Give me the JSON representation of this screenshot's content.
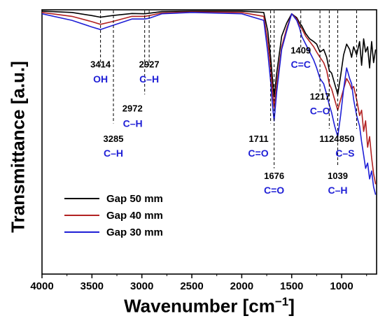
{
  "chart_data": {
    "type": "line",
    "title": "",
    "xlabel": "Wavenumber [cm−1]",
    "xlabel_base": "Wavenumber [cm",
    "xlabel_sup": "−1",
    "xlabel_end": "]",
    "ylabel": "Transmittance [a.u.]",
    "x_reversed": true,
    "xlim": [
      4000,
      650
    ],
    "ylim": [
      0,
      1
    ],
    "xticks": [
      4000,
      3500,
      3000,
      2500,
      2000,
      1500,
      1000
    ],
    "yticks_shown": false,
    "grid": false,
    "legend_position": "lower-left",
    "series": [
      {
        "name": "Gap 50 mm",
        "color": "#000000",
        "x": [
          4000,
          3700,
          3500,
          3414,
          3300,
          3100,
          2972,
          2927,
          2800,
          2500,
          2000,
          1780,
          1740,
          1711,
          1690,
          1676,
          1650,
          1600,
          1550,
          1500,
          1450,
          1420,
          1400,
          1360,
          1320,
          1280,
          1250,
          1217,
          1180,
          1150,
          1124,
          1100,
          1070,
          1039,
          1010,
          980,
          950,
          920,
          900,
          880,
          850,
          820,
          800,
          780,
          760,
          740,
          720,
          700,
          680,
          660
        ],
        "y": [
          0.995,
          0.99,
          0.978,
          0.972,
          0.978,
          0.986,
          0.985,
          0.987,
          0.993,
          0.995,
          0.995,
          0.99,
          0.92,
          0.82,
          0.73,
          0.67,
          0.76,
          0.9,
          0.95,
          0.985,
          0.97,
          0.95,
          0.94,
          0.91,
          0.89,
          0.88,
          0.87,
          0.84,
          0.85,
          0.82,
          0.77,
          0.76,
          0.72,
          0.68,
          0.75,
          0.83,
          0.87,
          0.85,
          0.82,
          0.86,
          0.83,
          0.88,
          0.79,
          0.89,
          0.84,
          0.86,
          0.78,
          0.88,
          0.8,
          0.85
        ]
      },
      {
        "name": "Gap 40 mm",
        "color": "#b22222",
        "x": [
          4000,
          3700,
          3500,
          3414,
          3300,
          3100,
          2972,
          2927,
          2800,
          2500,
          2000,
          1780,
          1740,
          1711,
          1690,
          1676,
          1650,
          1600,
          1550,
          1500,
          1450,
          1420,
          1400,
          1360,
          1320,
          1280,
          1250,
          1217,
          1180,
          1150,
          1124,
          1100,
          1070,
          1039,
          1010,
          980,
          950,
          920,
          900,
          880,
          850,
          820,
          800,
          780,
          760,
          740,
          720,
          700,
          680,
          660
        ],
        "y": [
          0.99,
          0.975,
          0.955,
          0.945,
          0.955,
          0.975,
          0.975,
          0.978,
          0.988,
          0.992,
          0.99,
          0.975,
          0.88,
          0.78,
          0.68,
          0.63,
          0.72,
          0.86,
          0.93,
          0.985,
          0.965,
          0.94,
          0.93,
          0.9,
          0.88,
          0.86,
          0.84,
          0.82,
          0.8,
          0.77,
          0.72,
          0.7,
          0.66,
          0.62,
          0.66,
          0.7,
          0.74,
          0.72,
          0.7,
          0.71,
          0.66,
          0.6,
          0.62,
          0.54,
          0.58,
          0.48,
          0.52,
          0.44,
          0.38,
          0.34
        ]
      },
      {
        "name": "Gap 30 mm",
        "color": "#1f1fd6",
        "x": [
          4000,
          3700,
          3500,
          3414,
          3300,
          3100,
          2972,
          2927,
          2800,
          2500,
          2000,
          1780,
          1740,
          1711,
          1690,
          1676,
          1650,
          1600,
          1550,
          1500,
          1450,
          1420,
          1400,
          1360,
          1320,
          1280,
          1250,
          1217,
          1180,
          1150,
          1124,
          1100,
          1070,
          1039,
          1010,
          980,
          950,
          920,
          900,
          880,
          850,
          820,
          800,
          780,
          760,
          740,
          720,
          700,
          680,
          660
        ],
        "y": [
          0.985,
          0.96,
          0.935,
          0.925,
          0.94,
          0.965,
          0.965,
          0.968,
          0.985,
          0.99,
          0.985,
          0.96,
          0.84,
          0.73,
          0.63,
          0.58,
          0.69,
          0.85,
          0.92,
          0.985,
          0.96,
          0.93,
          0.9,
          0.87,
          0.84,
          0.81,
          0.78,
          0.74,
          0.72,
          0.68,
          0.64,
          0.61,
          0.56,
          0.52,
          0.6,
          0.7,
          0.78,
          0.74,
          0.72,
          0.66,
          0.6,
          0.56,
          0.5,
          0.45,
          0.4,
          0.42,
          0.36,
          0.39,
          0.33,
          0.3
        ]
      }
    ],
    "annotations": [
      {
        "x": 3414,
        "number": "3414",
        "group": "OH",
        "line_bottom": 0.79,
        "num_y": 0.782,
        "grp_y": 0.725,
        "side": "center"
      },
      {
        "x": 3285,
        "number": "3285",
        "group": "C–H",
        "line_bottom": 0.57,
        "num_y": 0.5,
        "grp_y": 0.445,
        "side": "center"
      },
      {
        "x": 2972,
        "number": "2972",
        "group": "C–H",
        "line_bottom": 0.68,
        "num_y": 0.615,
        "grp_y": 0.557,
        "side": "left"
      },
      {
        "x": 2927,
        "number": "2927",
        "group": "C–H",
        "line_bottom": 0.79,
        "num_y": 0.782,
        "grp_y": 0.725,
        "side": "center"
      },
      {
        "x": 1711,
        "number": "1711",
        "group": "C=O",
        "line_bottom": 0.57,
        "num_y": 0.5,
        "grp_y": 0.445,
        "side": "left"
      },
      {
        "x": 1676,
        "number": "1676",
        "group": "C=O",
        "line_bottom": 0.4,
        "num_y": 0.36,
        "grp_y": 0.304,
        "side": "center"
      },
      {
        "x": 1409,
        "number": "1409",
        "group": "C=C",
        "line_bottom": 0.85,
        "num_y": 0.835,
        "grp_y": 0.78,
        "side": "center"
      },
      {
        "x": 1217,
        "number": "1217",
        "group": "C–O",
        "line_bottom": 0.69,
        "num_y": 0.66,
        "grp_y": 0.605,
        "side": "center"
      },
      {
        "x": 1124,
        "number": "1124",
        "group": "",
        "line_bottom": 0.55,
        "num_y": 0.5,
        "grp_y": null,
        "side": "center"
      },
      {
        "x": 1039,
        "number": "1039",
        "group": "C–H",
        "line_bottom": 0.41,
        "num_y": 0.36,
        "grp_y": 0.304,
        "side": "center"
      },
      {
        "x": 850,
        "number": "850",
        "group": "C–S",
        "line_bottom": 0.55,
        "num_y": 0.5,
        "grp_y": 0.445,
        "side": "left"
      }
    ],
    "label_color_number": "#000000",
    "label_color_group": "#1f1fd6"
  }
}
